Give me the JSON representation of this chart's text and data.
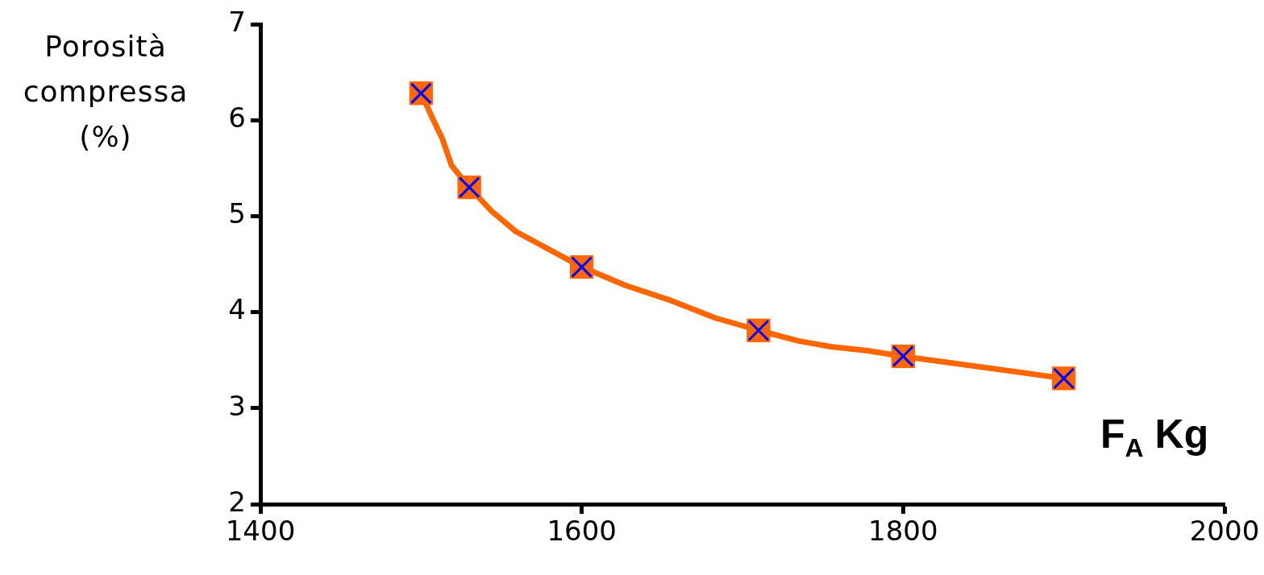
{
  "chart_data": {
    "type": "line",
    "xlabel": "F$_{A}$ Kg",
    "ylabel": "Porosità compressa (%)",
    "xlim": [
      1400,
      2000
    ],
    "xticks": [
      1400,
      1600,
      1800,
      2000
    ],
    "ylim": [
      2,
      7
    ],
    "yticks": [
      2,
      3,
      4,
      5,
      6,
      7
    ],
    "grid": false,
    "legend": false,
    "line_style": "solid",
    "series": [
      {
        "color": "#ff6600",
        "marker": "none",
        "x": [
          1500,
          1507.4,
          1513.4,
          1518.9,
          1530,
          1544,
          1559,
          1600,
          1627,
          1654,
          1683,
          1710,
          1735,
          1755,
          1777,
          1800,
          1900
        ],
        "values": [
          6.28,
          6.01,
          5.8,
          5.53,
          5.3,
          5.05,
          4.84,
          4.47,
          4.28,
          4.13,
          3.94,
          3.81,
          3.7,
          3.64,
          3.6,
          3.54,
          3.31
        ]
      },
      {
        "type": "scatter",
        "color": "#ff6600",
        "marker": "square",
        "x": [
          1500,
          1530,
          1600,
          1710,
          1800,
          1900
        ],
        "values": [
          6.28,
          5.3,
          4.47,
          3.81,
          3.54,
          3.31
        ]
      }
    ]
  }
}
